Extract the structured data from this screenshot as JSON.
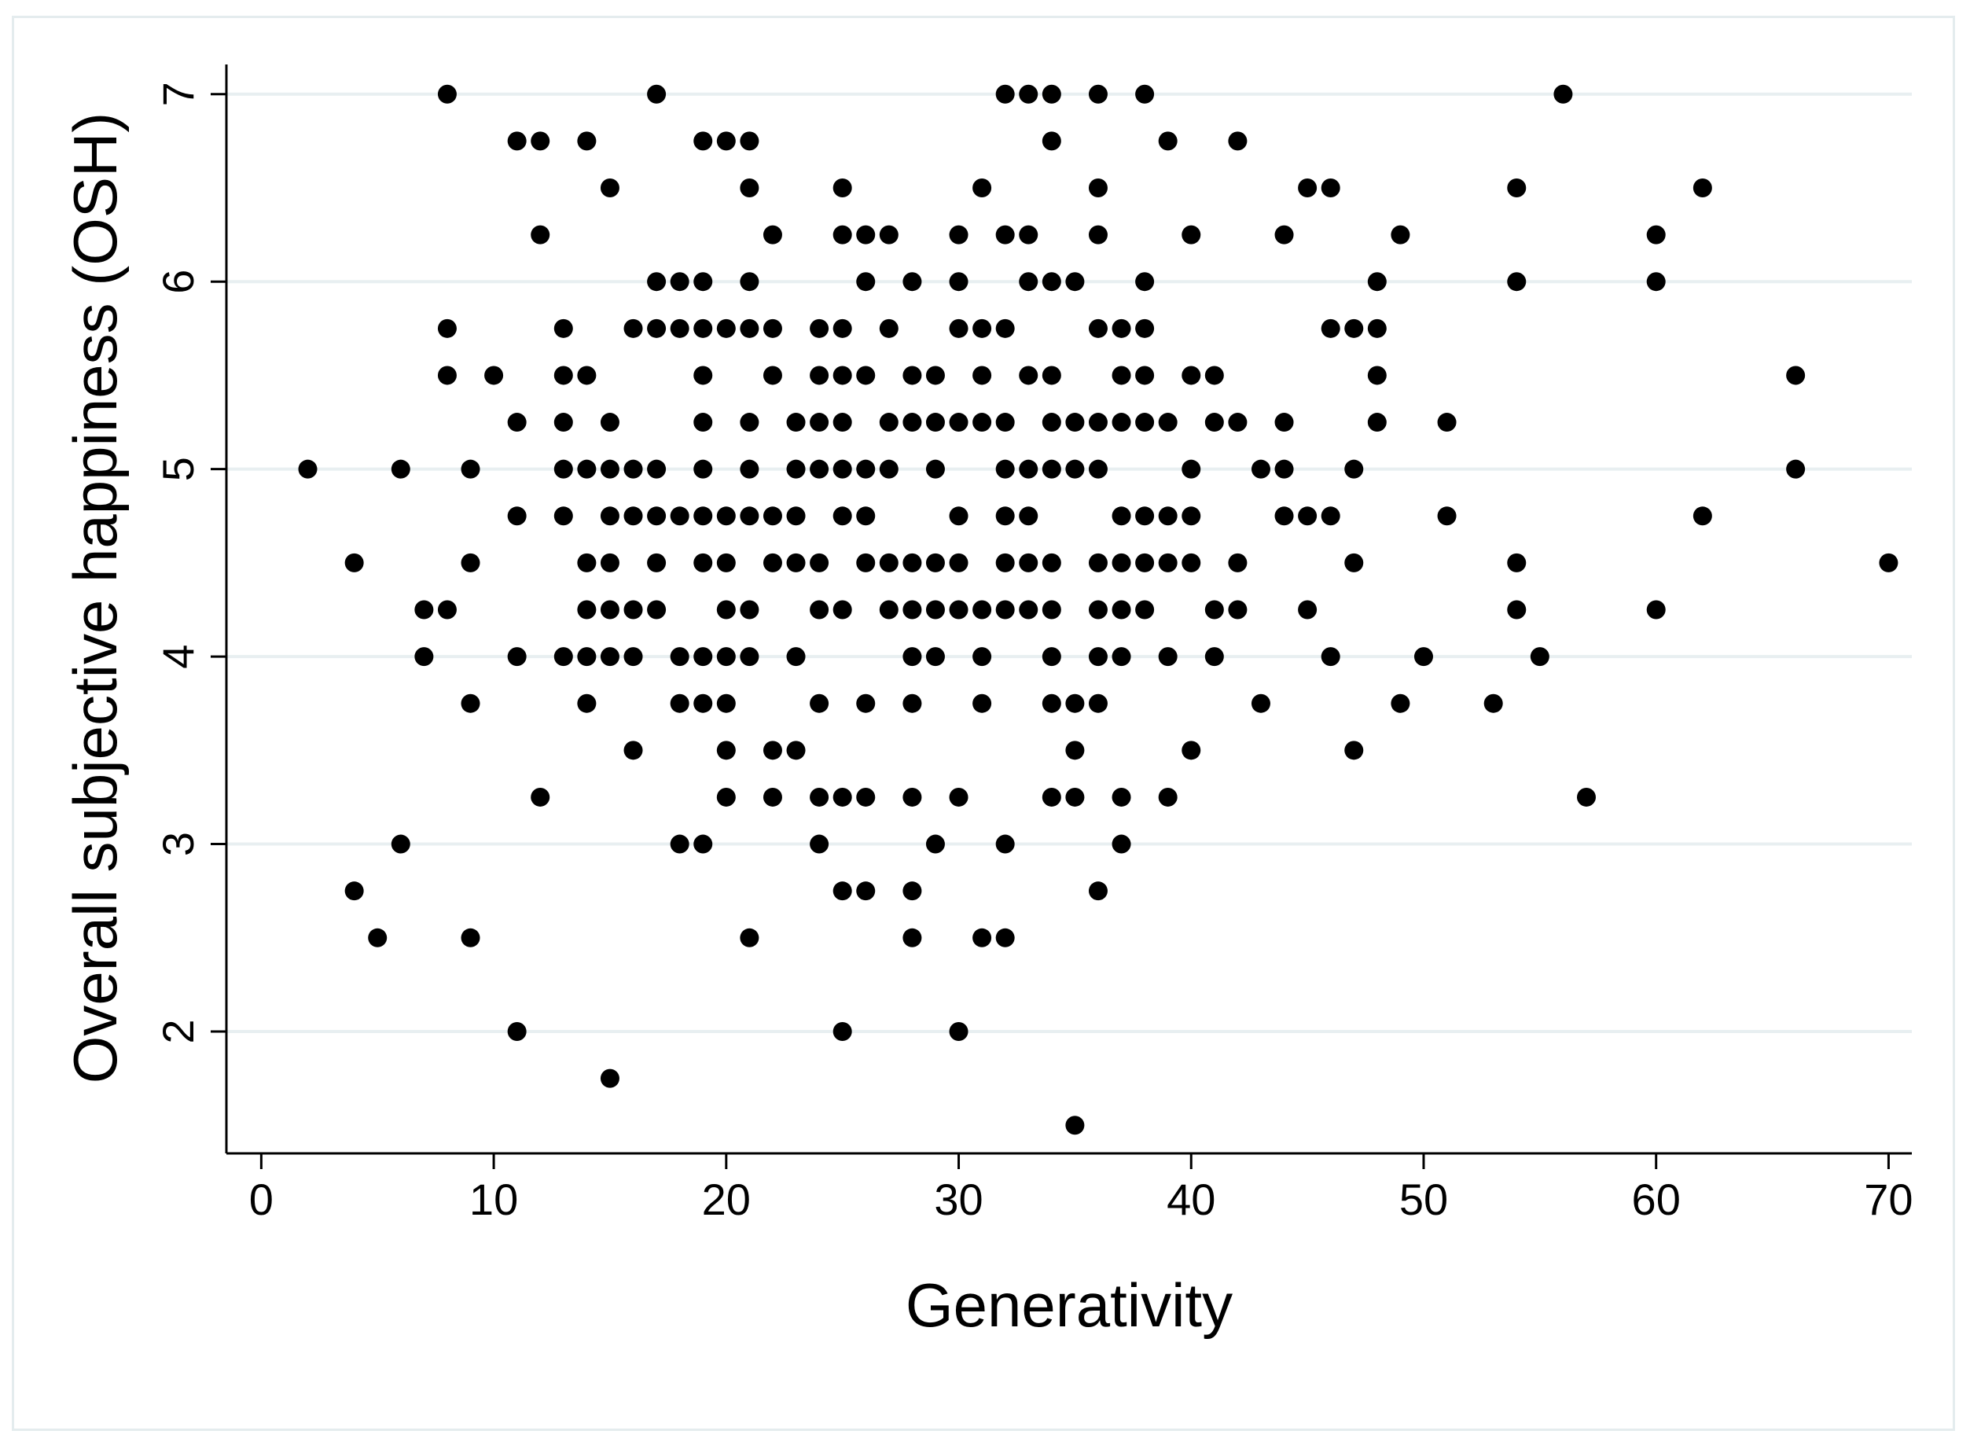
{
  "chart_data": {
    "type": "scatter",
    "title": "",
    "xlabel": "Generativity",
    "ylabel": "Overall subjective happiness (OSH)",
    "xlim": [
      -1.5,
      71
    ],
    "ylim": [
      1.35,
      7.15
    ],
    "xticks": [
      0,
      10,
      20,
      30,
      40,
      50,
      60,
      70
    ],
    "yticks": [
      2,
      3,
      4,
      5,
      6,
      7
    ],
    "grid": "horizontal",
    "colors": {
      "marker": "#000000",
      "grid": "#e8eff1",
      "frame": "#e4ecee",
      "axis": "#000000"
    },
    "series": [
      {
        "points": [
          [
            8,
            7
          ],
          [
            17,
            7
          ],
          [
            32,
            7
          ],
          [
            33,
            7
          ],
          [
            34,
            7
          ],
          [
            36,
            7
          ],
          [
            38,
            7
          ],
          [
            56,
            7
          ],
          [
            11,
            6.75
          ],
          [
            12,
            6.75
          ],
          [
            14,
            6.75
          ],
          [
            19,
            6.75
          ],
          [
            20,
            6.75
          ],
          [
            21,
            6.75
          ],
          [
            34,
            6.75
          ],
          [
            39,
            6.75
          ],
          [
            42,
            6.75
          ],
          [
            15,
            6.5
          ],
          [
            21,
            6.5
          ],
          [
            25,
            6.5
          ],
          [
            31,
            6.5
          ],
          [
            36,
            6.5
          ],
          [
            45,
            6.5
          ],
          [
            46,
            6.5
          ],
          [
            54,
            6.5
          ],
          [
            62,
            6.5
          ],
          [
            12,
            6.25
          ],
          [
            22,
            6.25
          ],
          [
            25,
            6.25
          ],
          [
            26,
            6.25
          ],
          [
            27,
            6.25
          ],
          [
            30,
            6.25
          ],
          [
            32,
            6.25
          ],
          [
            33,
            6.25
          ],
          [
            36,
            6.25
          ],
          [
            40,
            6.25
          ],
          [
            44,
            6.25
          ],
          [
            49,
            6.25
          ],
          [
            60,
            6.25
          ],
          [
            17,
            6
          ],
          [
            18,
            6
          ],
          [
            19,
            6
          ],
          [
            21,
            6
          ],
          [
            26,
            6
          ],
          [
            28,
            6
          ],
          [
            30,
            6
          ],
          [
            33,
            6
          ],
          [
            34,
            6
          ],
          [
            35,
            6
          ],
          [
            38,
            6
          ],
          [
            48,
            6
          ],
          [
            54,
            6
          ],
          [
            60,
            6
          ],
          [
            8,
            5.75
          ],
          [
            13,
            5.75
          ],
          [
            16,
            5.75
          ],
          [
            17,
            5.75
          ],
          [
            18,
            5.75
          ],
          [
            19,
            5.75
          ],
          [
            20,
            5.75
          ],
          [
            21,
            5.75
          ],
          [
            22,
            5.75
          ],
          [
            24,
            5.75
          ],
          [
            25,
            5.75
          ],
          [
            27,
            5.75
          ],
          [
            30,
            5.75
          ],
          [
            31,
            5.75
          ],
          [
            32,
            5.75
          ],
          [
            36,
            5.75
          ],
          [
            37,
            5.75
          ],
          [
            38,
            5.75
          ],
          [
            46,
            5.75
          ],
          [
            47,
            5.75
          ],
          [
            48,
            5.75
          ],
          [
            8,
            5.5
          ],
          [
            10,
            5.5
          ],
          [
            13,
            5.5
          ],
          [
            14,
            5.5
          ],
          [
            19,
            5.5
          ],
          [
            22,
            5.5
          ],
          [
            24,
            5.5
          ],
          [
            25,
            5.5
          ],
          [
            26,
            5.5
          ],
          [
            28,
            5.5
          ],
          [
            29,
            5.5
          ],
          [
            31,
            5.5
          ],
          [
            33,
            5.5
          ],
          [
            34,
            5.5
          ],
          [
            37,
            5.5
          ],
          [
            38,
            5.5
          ],
          [
            40,
            5.5
          ],
          [
            41,
            5.5
          ],
          [
            48,
            5.5
          ],
          [
            66,
            5.5
          ],
          [
            11,
            5.25
          ],
          [
            13,
            5.25
          ],
          [
            15,
            5.25
          ],
          [
            19,
            5.25
          ],
          [
            21,
            5.25
          ],
          [
            23,
            5.25
          ],
          [
            24,
            5.25
          ],
          [
            25,
            5.25
          ],
          [
            27,
            5.25
          ],
          [
            28,
            5.25
          ],
          [
            29,
            5.25
          ],
          [
            30,
            5.25
          ],
          [
            31,
            5.25
          ],
          [
            32,
            5.25
          ],
          [
            34,
            5.25
          ],
          [
            35,
            5.25
          ],
          [
            36,
            5.25
          ],
          [
            37,
            5.25
          ],
          [
            38,
            5.25
          ],
          [
            39,
            5.25
          ],
          [
            41,
            5.25
          ],
          [
            42,
            5.25
          ],
          [
            44,
            5.25
          ],
          [
            48,
            5.25
          ],
          [
            51,
            5.25
          ],
          [
            2,
            5
          ],
          [
            6,
            5
          ],
          [
            9,
            5
          ],
          [
            13,
            5
          ],
          [
            14,
            5
          ],
          [
            15,
            5
          ],
          [
            16,
            5
          ],
          [
            17,
            5
          ],
          [
            19,
            5
          ],
          [
            21,
            5
          ],
          [
            23,
            5
          ],
          [
            24,
            5
          ],
          [
            25,
            5
          ],
          [
            26,
            5
          ],
          [
            27,
            5
          ],
          [
            29,
            5
          ],
          [
            32,
            5
          ],
          [
            33,
            5
          ],
          [
            34,
            5
          ],
          [
            35,
            5
          ],
          [
            36,
            5
          ],
          [
            40,
            5
          ],
          [
            43,
            5
          ],
          [
            44,
            5
          ],
          [
            47,
            5
          ],
          [
            66,
            5
          ],
          [
            11,
            4.75
          ],
          [
            13,
            4.75
          ],
          [
            15,
            4.75
          ],
          [
            16,
            4.75
          ],
          [
            17,
            4.75
          ],
          [
            18,
            4.75
          ],
          [
            19,
            4.75
          ],
          [
            20,
            4.75
          ],
          [
            21,
            4.75
          ],
          [
            22,
            4.75
          ],
          [
            23,
            4.75
          ],
          [
            25,
            4.75
          ],
          [
            26,
            4.75
          ],
          [
            30,
            4.75
          ],
          [
            32,
            4.75
          ],
          [
            33,
            4.75
          ],
          [
            37,
            4.75
          ],
          [
            38,
            4.75
          ],
          [
            39,
            4.75
          ],
          [
            40,
            4.75
          ],
          [
            44,
            4.75
          ],
          [
            45,
            4.75
          ],
          [
            46,
            4.75
          ],
          [
            51,
            4.75
          ],
          [
            62,
            4.75
          ],
          [
            4,
            4.5
          ],
          [
            9,
            4.5
          ],
          [
            14,
            4.5
          ],
          [
            15,
            4.5
          ],
          [
            17,
            4.5
          ],
          [
            19,
            4.5
          ],
          [
            20,
            4.5
          ],
          [
            22,
            4.5
          ],
          [
            23,
            4.5
          ],
          [
            24,
            4.5
          ],
          [
            26,
            4.5
          ],
          [
            27,
            4.5
          ],
          [
            28,
            4.5
          ],
          [
            29,
            4.5
          ],
          [
            30,
            4.5
          ],
          [
            32,
            4.5
          ],
          [
            33,
            4.5
          ],
          [
            34,
            4.5
          ],
          [
            36,
            4.5
          ],
          [
            37,
            4.5
          ],
          [
            38,
            4.5
          ],
          [
            39,
            4.5
          ],
          [
            40,
            4.5
          ],
          [
            42,
            4.5
          ],
          [
            47,
            4.5
          ],
          [
            54,
            4.5
          ],
          [
            70,
            4.5
          ],
          [
            7,
            4.25
          ],
          [
            8,
            4.25
          ],
          [
            14,
            4.25
          ],
          [
            15,
            4.25
          ],
          [
            16,
            4.25
          ],
          [
            17,
            4.25
          ],
          [
            20,
            4.25
          ],
          [
            21,
            4.25
          ],
          [
            24,
            4.25
          ],
          [
            25,
            4.25
          ],
          [
            27,
            4.25
          ],
          [
            28,
            4.25
          ],
          [
            29,
            4.25
          ],
          [
            30,
            4.25
          ],
          [
            31,
            4.25
          ],
          [
            32,
            4.25
          ],
          [
            33,
            4.25
          ],
          [
            34,
            4.25
          ],
          [
            36,
            4.25
          ],
          [
            37,
            4.25
          ],
          [
            38,
            4.25
          ],
          [
            41,
            4.25
          ],
          [
            42,
            4.25
          ],
          [
            45,
            4.25
          ],
          [
            54,
            4.25
          ],
          [
            60,
            4.25
          ],
          [
            7,
            4
          ],
          [
            11,
            4
          ],
          [
            13,
            4
          ],
          [
            14,
            4
          ],
          [
            15,
            4
          ],
          [
            16,
            4
          ],
          [
            18,
            4
          ],
          [
            19,
            4
          ],
          [
            20,
            4
          ],
          [
            21,
            4
          ],
          [
            23,
            4
          ],
          [
            28,
            4
          ],
          [
            29,
            4
          ],
          [
            31,
            4
          ],
          [
            34,
            4
          ],
          [
            36,
            4
          ],
          [
            37,
            4
          ],
          [
            39,
            4
          ],
          [
            41,
            4
          ],
          [
            46,
            4
          ],
          [
            50,
            4
          ],
          [
            55,
            4
          ],
          [
            9,
            3.75
          ],
          [
            14,
            3.75
          ],
          [
            18,
            3.75
          ],
          [
            19,
            3.75
          ],
          [
            20,
            3.75
          ],
          [
            24,
            3.75
          ],
          [
            26,
            3.75
          ],
          [
            28,
            3.75
          ],
          [
            31,
            3.75
          ],
          [
            34,
            3.75
          ],
          [
            35,
            3.75
          ],
          [
            36,
            3.75
          ],
          [
            43,
            3.75
          ],
          [
            49,
            3.75
          ],
          [
            53,
            3.75
          ],
          [
            16,
            3.5
          ],
          [
            20,
            3.5
          ],
          [
            22,
            3.5
          ],
          [
            23,
            3.5
          ],
          [
            35,
            3.5
          ],
          [
            40,
            3.5
          ],
          [
            47,
            3.5
          ],
          [
            12,
            3.25
          ],
          [
            20,
            3.25
          ],
          [
            22,
            3.25
          ],
          [
            24,
            3.25
          ],
          [
            25,
            3.25
          ],
          [
            26,
            3.25
          ],
          [
            28,
            3.25
          ],
          [
            30,
            3.25
          ],
          [
            34,
            3.25
          ],
          [
            35,
            3.25
          ],
          [
            37,
            3.25
          ],
          [
            39,
            3.25
          ],
          [
            57,
            3.25
          ],
          [
            6,
            3
          ],
          [
            18,
            3
          ],
          [
            19,
            3
          ],
          [
            24,
            3
          ],
          [
            29,
            3
          ],
          [
            32,
            3
          ],
          [
            37,
            3
          ],
          [
            4,
            2.75
          ],
          [
            25,
            2.75
          ],
          [
            26,
            2.75
          ],
          [
            28,
            2.75
          ],
          [
            36,
            2.75
          ],
          [
            5,
            2.5
          ],
          [
            9,
            2.5
          ],
          [
            21,
            2.5
          ],
          [
            28,
            2.5
          ],
          [
            31,
            2.5
          ],
          [
            32,
            2.5
          ],
          [
            11,
            2
          ],
          [
            25,
            2
          ],
          [
            30,
            2
          ],
          [
            15,
            1.75
          ],
          [
            35,
            1.5
          ]
        ]
      }
    ]
  }
}
